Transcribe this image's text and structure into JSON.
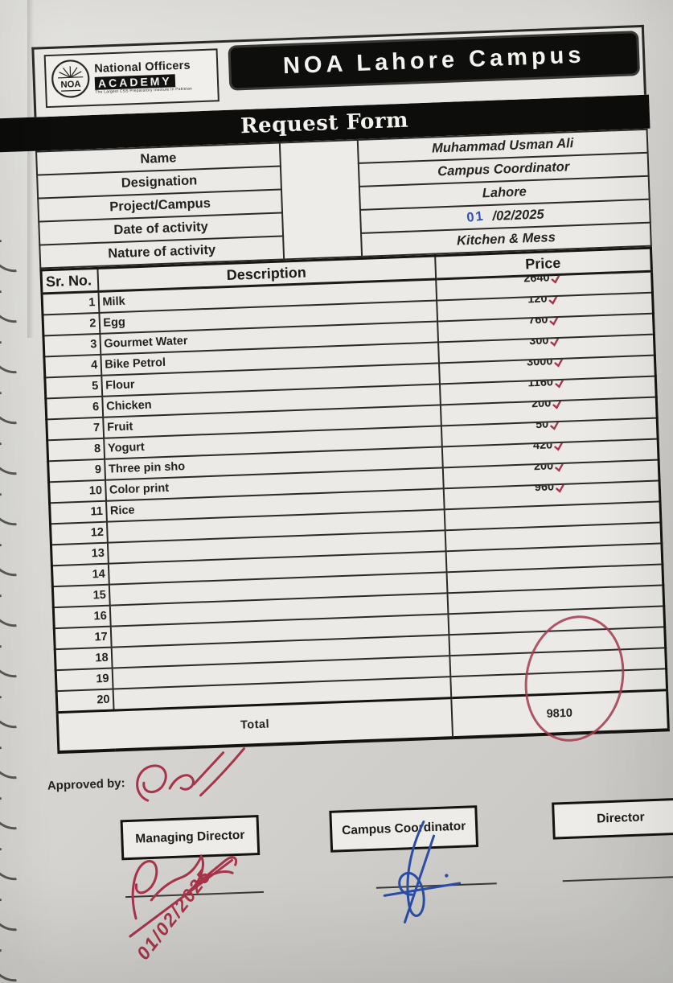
{
  "header": {
    "org_name": "National Officers",
    "org_academy": "ACADEMY",
    "org_tagline": "The Largest CSS Preparatory Institute In Pakistan",
    "logo_text": "NOA",
    "campus_badge": "NOA Lahore Campus"
  },
  "form": {
    "title": "Request Form",
    "fields": [
      {
        "label": "Name",
        "value": "Muhammad Usman Ali"
      },
      {
        "label": "Designation",
        "value": "Campus Coordinator"
      },
      {
        "label": "Project/Campus",
        "value": "Lahore"
      },
      {
        "label": "Date of activity",
        "value": "/02/2025",
        "handwritten_prefix": "01"
      },
      {
        "label": "Nature of activity",
        "value": "Kitchen & Mess"
      }
    ]
  },
  "table": {
    "columns": [
      "Sr. No.",
      "Description",
      "Price"
    ],
    "rows": [
      {
        "sr": "1",
        "description": "Milk",
        "price": "2640",
        "checked": true
      },
      {
        "sr": "2",
        "description": "Egg",
        "price": "120",
        "checked": true
      },
      {
        "sr": "3",
        "description": "Gourmet Water",
        "price": "760",
        "checked": true
      },
      {
        "sr": "4",
        "description": "Bike Petrol",
        "price": "300",
        "checked": true
      },
      {
        "sr": "5",
        "description": "Flour",
        "price": "3000",
        "checked": true
      },
      {
        "sr": "6",
        "description": "Chicken",
        "price": "1160",
        "checked": true
      },
      {
        "sr": "7",
        "description": "Fruit",
        "price": "200",
        "checked": true
      },
      {
        "sr": "8",
        "description": "Yogurt",
        "price": "50",
        "checked": true
      },
      {
        "sr": "9",
        "description": "Three pin sho",
        "price": "420",
        "checked": true
      },
      {
        "sr": "10",
        "description": "Color print",
        "price": "200",
        "checked": true
      },
      {
        "sr": "11",
        "description": "Rice",
        "price": "960",
        "checked": true
      },
      {
        "sr": "12",
        "description": "",
        "price": "",
        "checked": false
      },
      {
        "sr": "13",
        "description": "",
        "price": "",
        "checked": false
      },
      {
        "sr": "14",
        "description": "",
        "price": "",
        "checked": false
      },
      {
        "sr": "15",
        "description": "",
        "price": "",
        "checked": false
      },
      {
        "sr": "16",
        "description": "",
        "price": "",
        "checked": false
      },
      {
        "sr": "17",
        "description": "",
        "price": "",
        "checked": false
      },
      {
        "sr": "18",
        "description": "",
        "price": "",
        "checked": false
      },
      {
        "sr": "19",
        "description": "",
        "price": "",
        "checked": false
      },
      {
        "sr": "20",
        "description": "",
        "price": "",
        "checked": false
      }
    ],
    "total_label": "Total",
    "total_value": "9810"
  },
  "approval": {
    "approved_by_label": "Approved by:",
    "signatories": [
      "Managing Director",
      "Campus Coordinator",
      "Director"
    ],
    "handwritten_date": "01/02/2025"
  },
  "colors": {
    "pen_red": "#a8344a",
    "pen_blue": "#2a4da8",
    "ink_black": "#141310",
    "paper": "#d8d6d2"
  }
}
